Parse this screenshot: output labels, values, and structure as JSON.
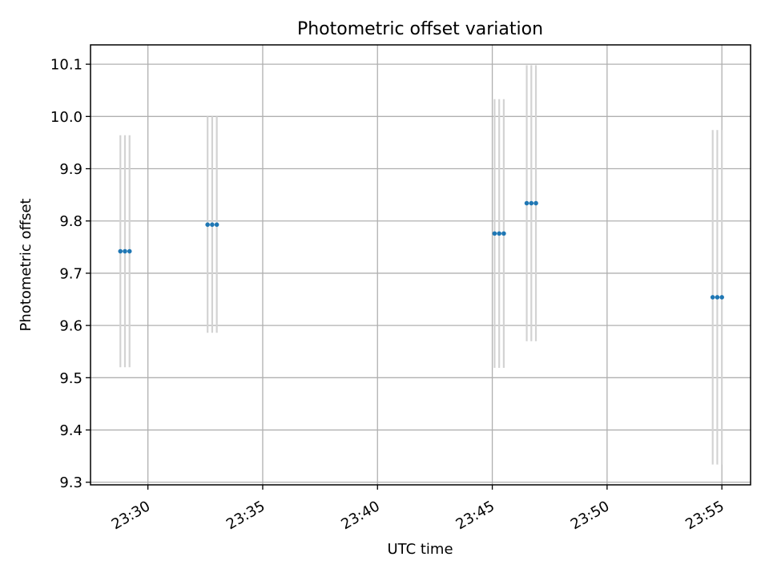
{
  "chart_data": {
    "type": "scatter",
    "title": "Photometric offset variation",
    "xlabel": "UTC time",
    "ylabel": "Photometric offset",
    "x_tick_labels": [
      "23:30",
      "23:35",
      "23:40",
      "23:45",
      "23:50",
      "23:55"
    ],
    "x_tick_times": [
      "23:30",
      "23:35",
      "23:40",
      "23:45",
      "23:50",
      "23:55"
    ],
    "y_ticks": [
      9.3,
      9.4,
      9.5,
      9.6,
      9.7,
      9.8,
      9.9,
      10.0,
      10.1
    ],
    "y_tick_labels": [
      "9.3",
      "9.4",
      "9.5",
      "9.6",
      "9.7",
      "9.8",
      "9.9",
      "10.0",
      "10.1"
    ],
    "xlim": [
      "23:27:30",
      "23:56:15"
    ],
    "ylim": [
      9.295,
      10.137
    ],
    "grid": true,
    "point_color": "#1f77b4",
    "errorbar_color": "#d3d3d3",
    "points": [
      {
        "t": "23:28:48",
        "y": 9.742,
        "yerr": 0.222
      },
      {
        "t": "23:29:00",
        "y": 9.742,
        "yerr": 0.222
      },
      {
        "t": "23:29:12",
        "y": 9.742,
        "yerr": 0.222
      },
      {
        "t": "23:32:36",
        "y": 9.793,
        "yerr": 0.207
      },
      {
        "t": "23:32:48",
        "y": 9.793,
        "yerr": 0.207
      },
      {
        "t": "23:33:00",
        "y": 9.793,
        "yerr": 0.207
      },
      {
        "t": "23:45:06",
        "y": 9.776,
        "yerr": 0.257
      },
      {
        "t": "23:45:18",
        "y": 9.776,
        "yerr": 0.257
      },
      {
        "t": "23:45:30",
        "y": 9.776,
        "yerr": 0.257
      },
      {
        "t": "23:46:30",
        "y": 9.834,
        "yerr": 0.264
      },
      {
        "t": "23:46:42",
        "y": 9.834,
        "yerr": 0.264
      },
      {
        "t": "23:46:54",
        "y": 9.834,
        "yerr": 0.264
      },
      {
        "t": "23:54:36",
        "y": 9.654,
        "yerr": 0.32
      },
      {
        "t": "23:54:48",
        "y": 9.654,
        "yerr": 0.32
      },
      {
        "t": "23:55:00",
        "y": 9.654,
        "yerr": 0.32
      }
    ]
  }
}
